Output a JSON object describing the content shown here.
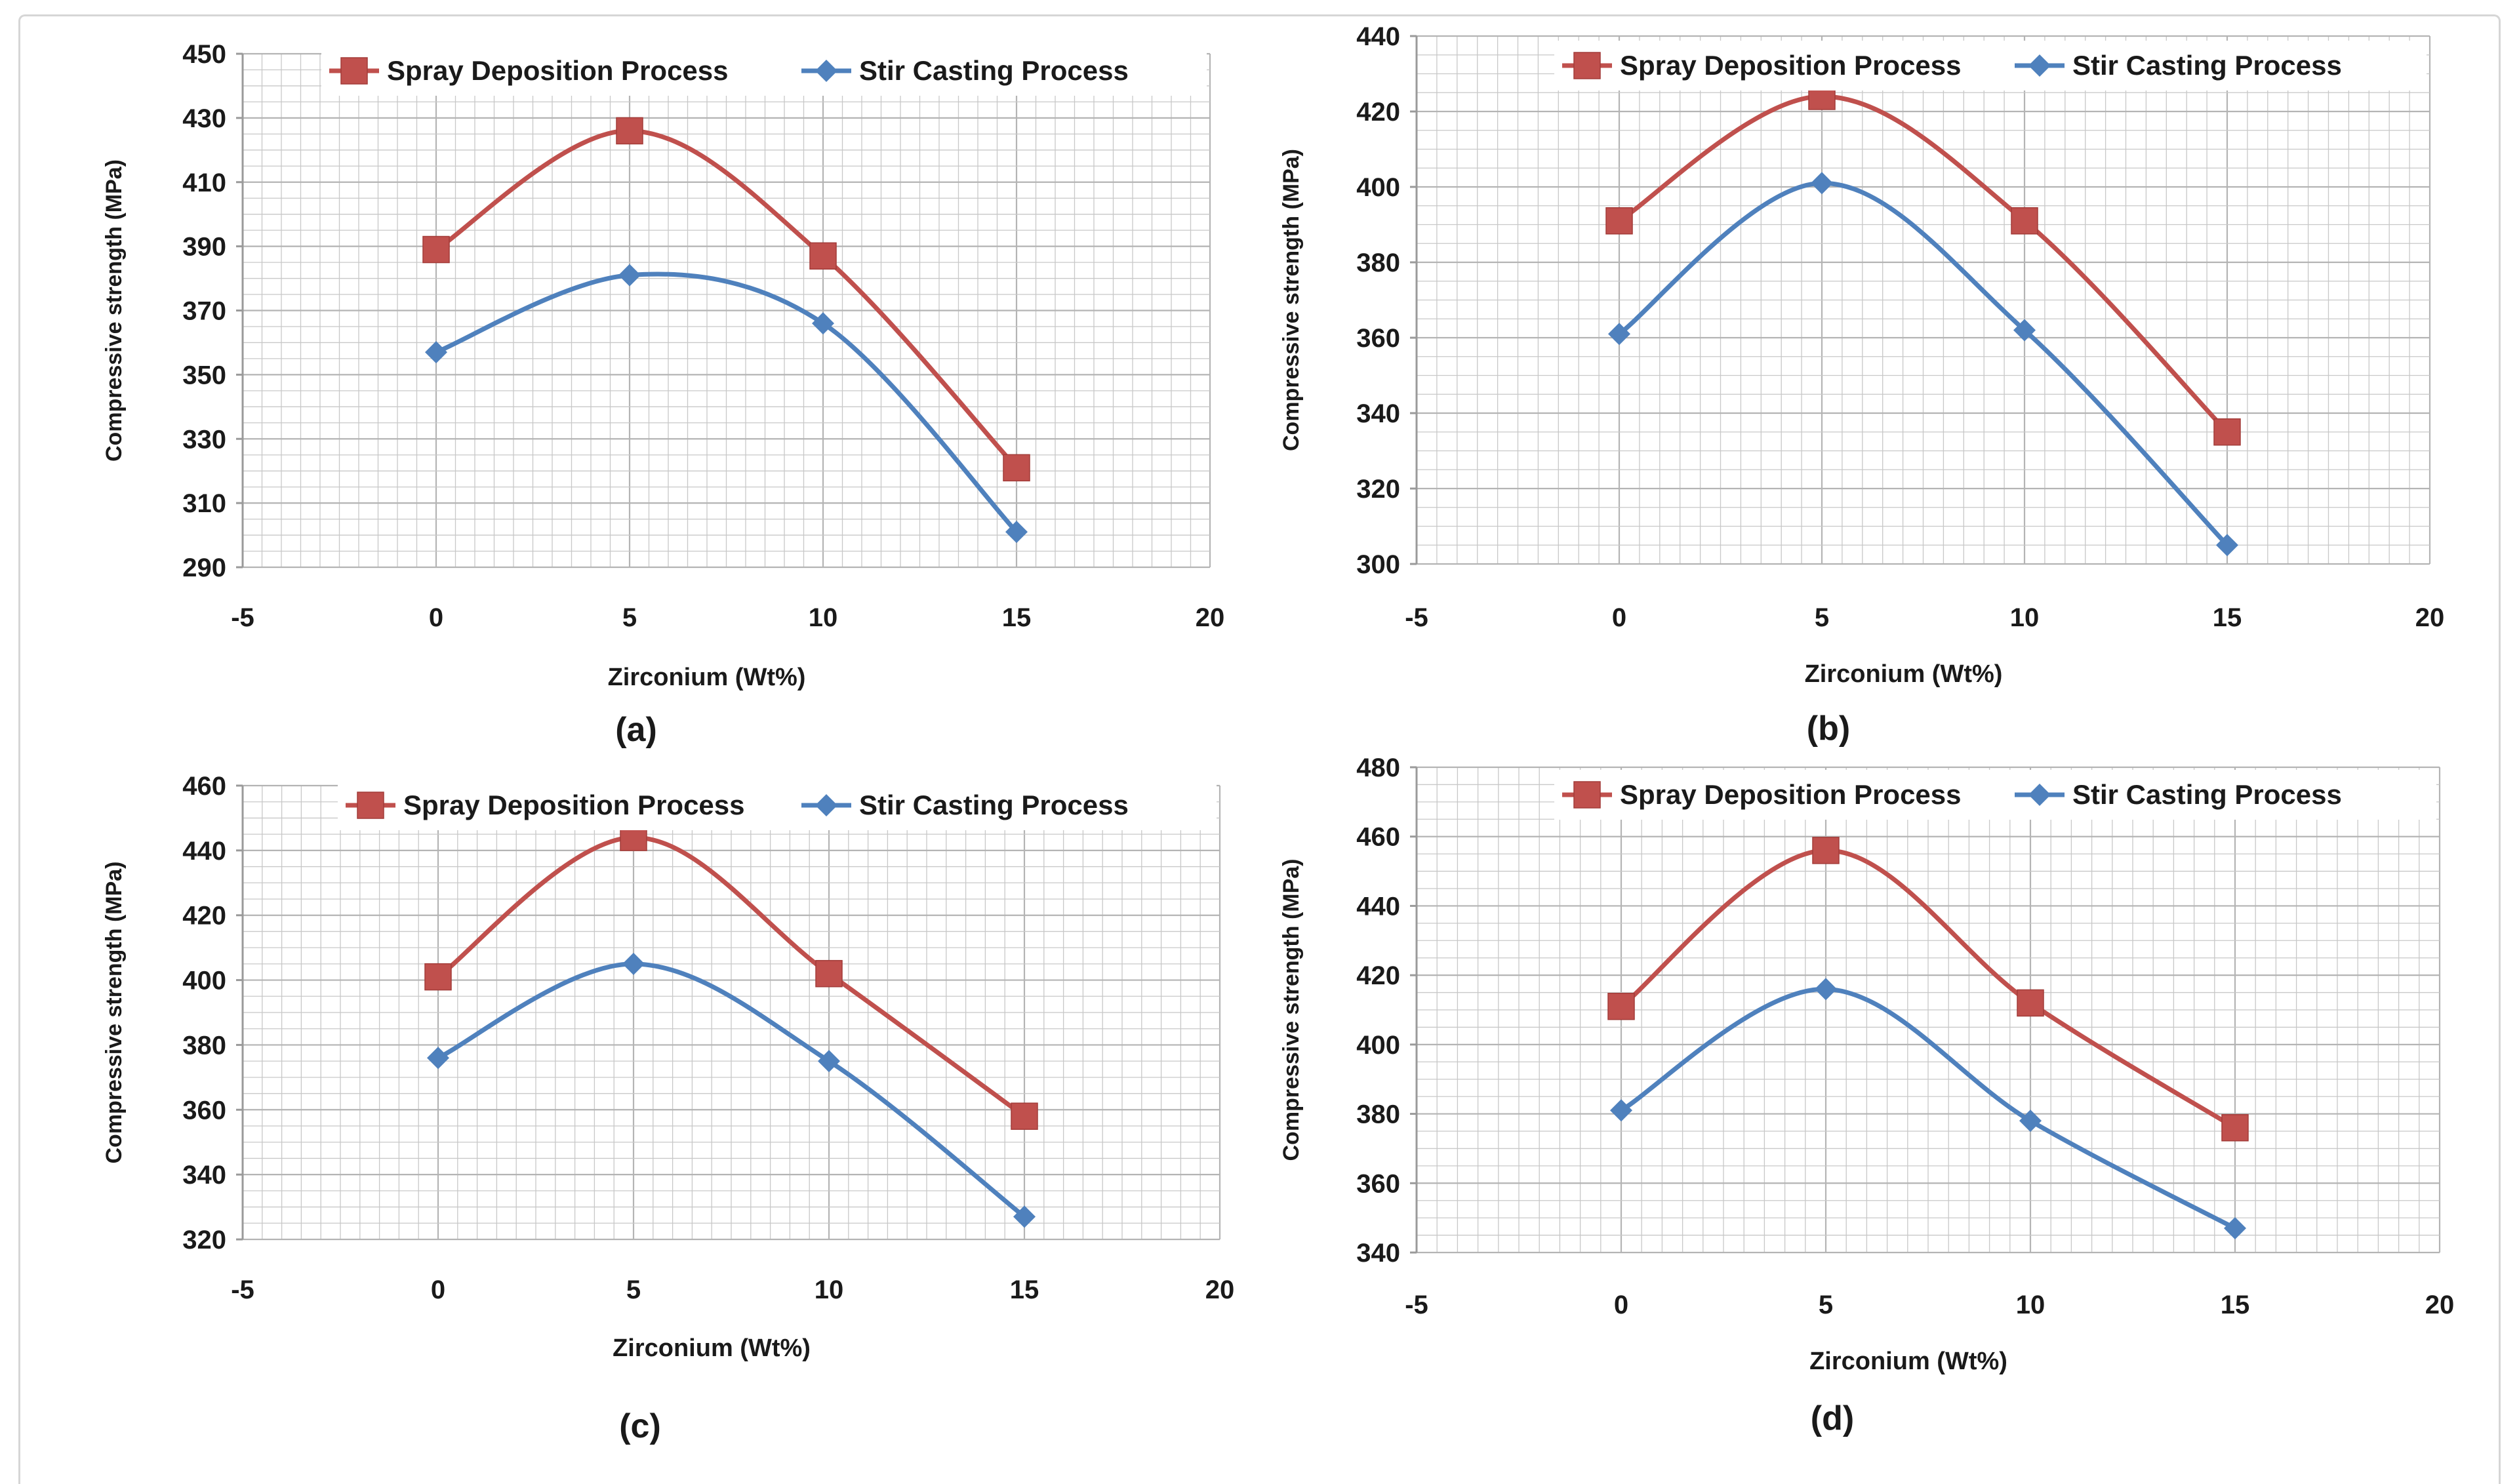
{
  "colors": {
    "spray": "#c0504d",
    "stir": "#4f81bd",
    "grid": "#c8c8c8",
    "axis": "#9a9a9a",
    "text": "#1a1a1a"
  },
  "chart_data": [
    {
      "type": "line",
      "panel_label": "(a)",
      "xlabel": "Zirconium (Wt%)",
      "ylabel": "Compressive strength  (MPa)",
      "xlim": [
        -5,
        20
      ],
      "ylim": [
        290,
        450
      ],
      "xticks": [
        "-5",
        "0",
        "5",
        "10",
        "15",
        "20"
      ],
      "yticks": [
        "290",
        "310",
        "330",
        "350",
        "370",
        "390",
        "410",
        "430",
        "450"
      ],
      "legend_position": "top-right",
      "series": [
        {
          "name": "Spray Deposition Process",
          "key": "spray",
          "marker": "square",
          "x": [
            0,
            5,
            10,
            15
          ],
          "values": [
            389,
            426,
            387,
            321
          ]
        },
        {
          "name": "Stir Casting Process",
          "key": "stir",
          "marker": "diamond",
          "x": [
            0,
            5,
            10,
            15
          ],
          "values": [
            357,
            381,
            366,
            301
          ]
        }
      ]
    },
    {
      "type": "line",
      "panel_label": "(b)",
      "xlabel": "Zirconium (Wt%)",
      "ylabel": "Compressive strength  (MPa)",
      "xlim": [
        -5,
        20
      ],
      "ylim": [
        300,
        440
      ],
      "xticks": [
        "-5",
        "0",
        "5",
        "10",
        "15",
        "20"
      ],
      "yticks": [
        "300",
        "320",
        "340",
        "360",
        "380",
        "400",
        "420",
        "440"
      ],
      "legend_position": "top-right",
      "series": [
        {
          "name": "Spray Deposition Process",
          "key": "spray",
          "marker": "square",
          "x": [
            0,
            5,
            10,
            15
          ],
          "values": [
            391,
            424,
            391,
            335
          ]
        },
        {
          "name": "Stir Casting Process",
          "key": "stir",
          "marker": "diamond",
          "x": [
            0,
            5,
            10,
            15
          ],
          "values": [
            361,
            401,
            362,
            305
          ]
        }
      ]
    },
    {
      "type": "line",
      "panel_label": "(c)",
      "xlabel": "Zirconium (Wt%)",
      "ylabel": "Compressive strength  (MPa)",
      "xlim": [
        -5,
        20
      ],
      "ylim": [
        320,
        460
      ],
      "xticks": [
        "-5",
        "0",
        "5",
        "10",
        "15",
        "20"
      ],
      "yticks": [
        "320",
        "340",
        "360",
        "380",
        "400",
        "420",
        "440",
        "460"
      ],
      "legend_position": "top-right",
      "series": [
        {
          "name": "Spray Deposition Process",
          "key": "spray",
          "marker": "square",
          "x": [
            0,
            5,
            10,
            15
          ],
          "values": [
            401,
            444,
            402,
            358
          ]
        },
        {
          "name": "Stir Casting Process",
          "key": "stir",
          "marker": "diamond",
          "x": [
            0,
            5,
            10,
            15
          ],
          "values": [
            376,
            405,
            375,
            327
          ]
        }
      ]
    },
    {
      "type": "line",
      "panel_label": "(d)",
      "xlabel": "Zirconium (Wt%)",
      "ylabel": "Compressive strength  (MPa)",
      "xlim": [
        -5,
        20
      ],
      "ylim": [
        340,
        480
      ],
      "xticks": [
        "-5",
        "0",
        "5",
        "10",
        "15",
        "20"
      ],
      "yticks": [
        "340",
        "360",
        "380",
        "400",
        "420",
        "440",
        "460",
        "480"
      ],
      "legend_position": "top-right",
      "series": [
        {
          "name": "Spray Deposition Process",
          "key": "spray",
          "marker": "square",
          "x": [
            0,
            5,
            10,
            15
          ],
          "values": [
            411,
            456,
            412,
            376
          ]
        },
        {
          "name": "Stir Casting Process",
          "key": "stir",
          "marker": "diamond",
          "x": [
            0,
            5,
            10,
            15
          ],
          "values": [
            381,
            416,
            378,
            347
          ]
        }
      ]
    }
  ]
}
